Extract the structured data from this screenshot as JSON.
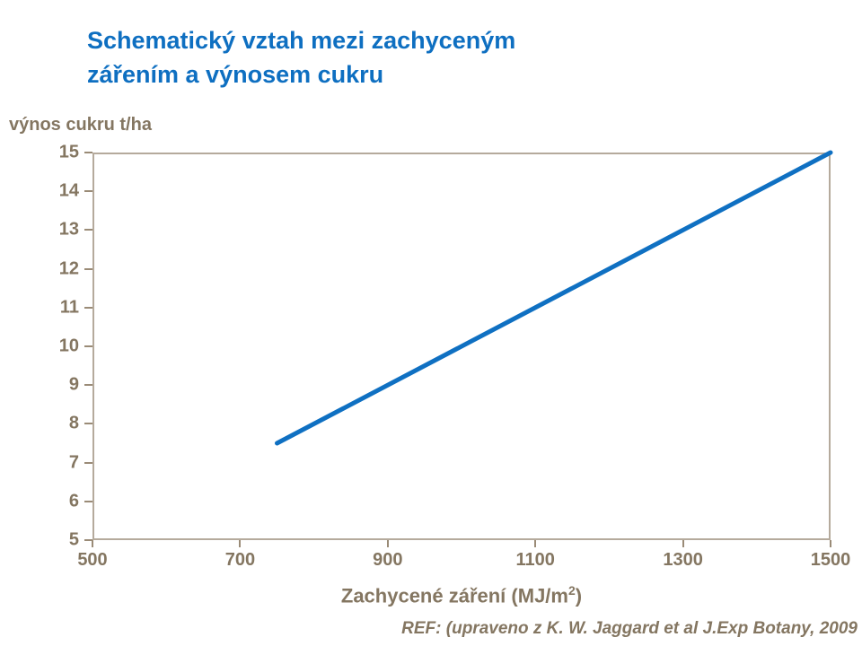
{
  "title": {
    "line1": "Schematický vztah mezi zachyceným",
    "line2": "zářením a výnosem cukru",
    "color": "#0e6fc1"
  },
  "footer": {
    "reference": "REF: (upraveno z K. W. Jaggard et al J.Exp Botany, 2009"
  },
  "chart_data": {
    "type": "line",
    "title": "Schematický vztah mezi zachyceným zářením a výnosem cukru",
    "ylabel": "výnos cukru t/ha",
    "xlabel": "Zachycené záření (MJ/m2)",
    "xlabel_parts": {
      "main": "Zachycené záření (MJ/m",
      "sup": "2",
      "end": ")"
    },
    "xlim": [
      500,
      1500
    ],
    "ylim": [
      5,
      15
    ],
    "x_ticks": [
      500,
      700,
      900,
      1100,
      1300,
      1500
    ],
    "y_ticks": [
      5,
      6,
      7,
      8,
      9,
      10,
      11,
      12,
      13,
      14,
      15
    ],
    "grid": false,
    "legend": "none",
    "series": [
      {
        "name": "výnos cukru",
        "points": [
          [
            750,
            7.5
          ],
          [
            1500,
            15
          ]
        ],
        "color": "#0f70c2",
        "stroke_width": 5
      }
    ],
    "axis_frame_color": "#b5aa9c",
    "tick_color": "#9a8b77",
    "text_color": "#847661"
  }
}
